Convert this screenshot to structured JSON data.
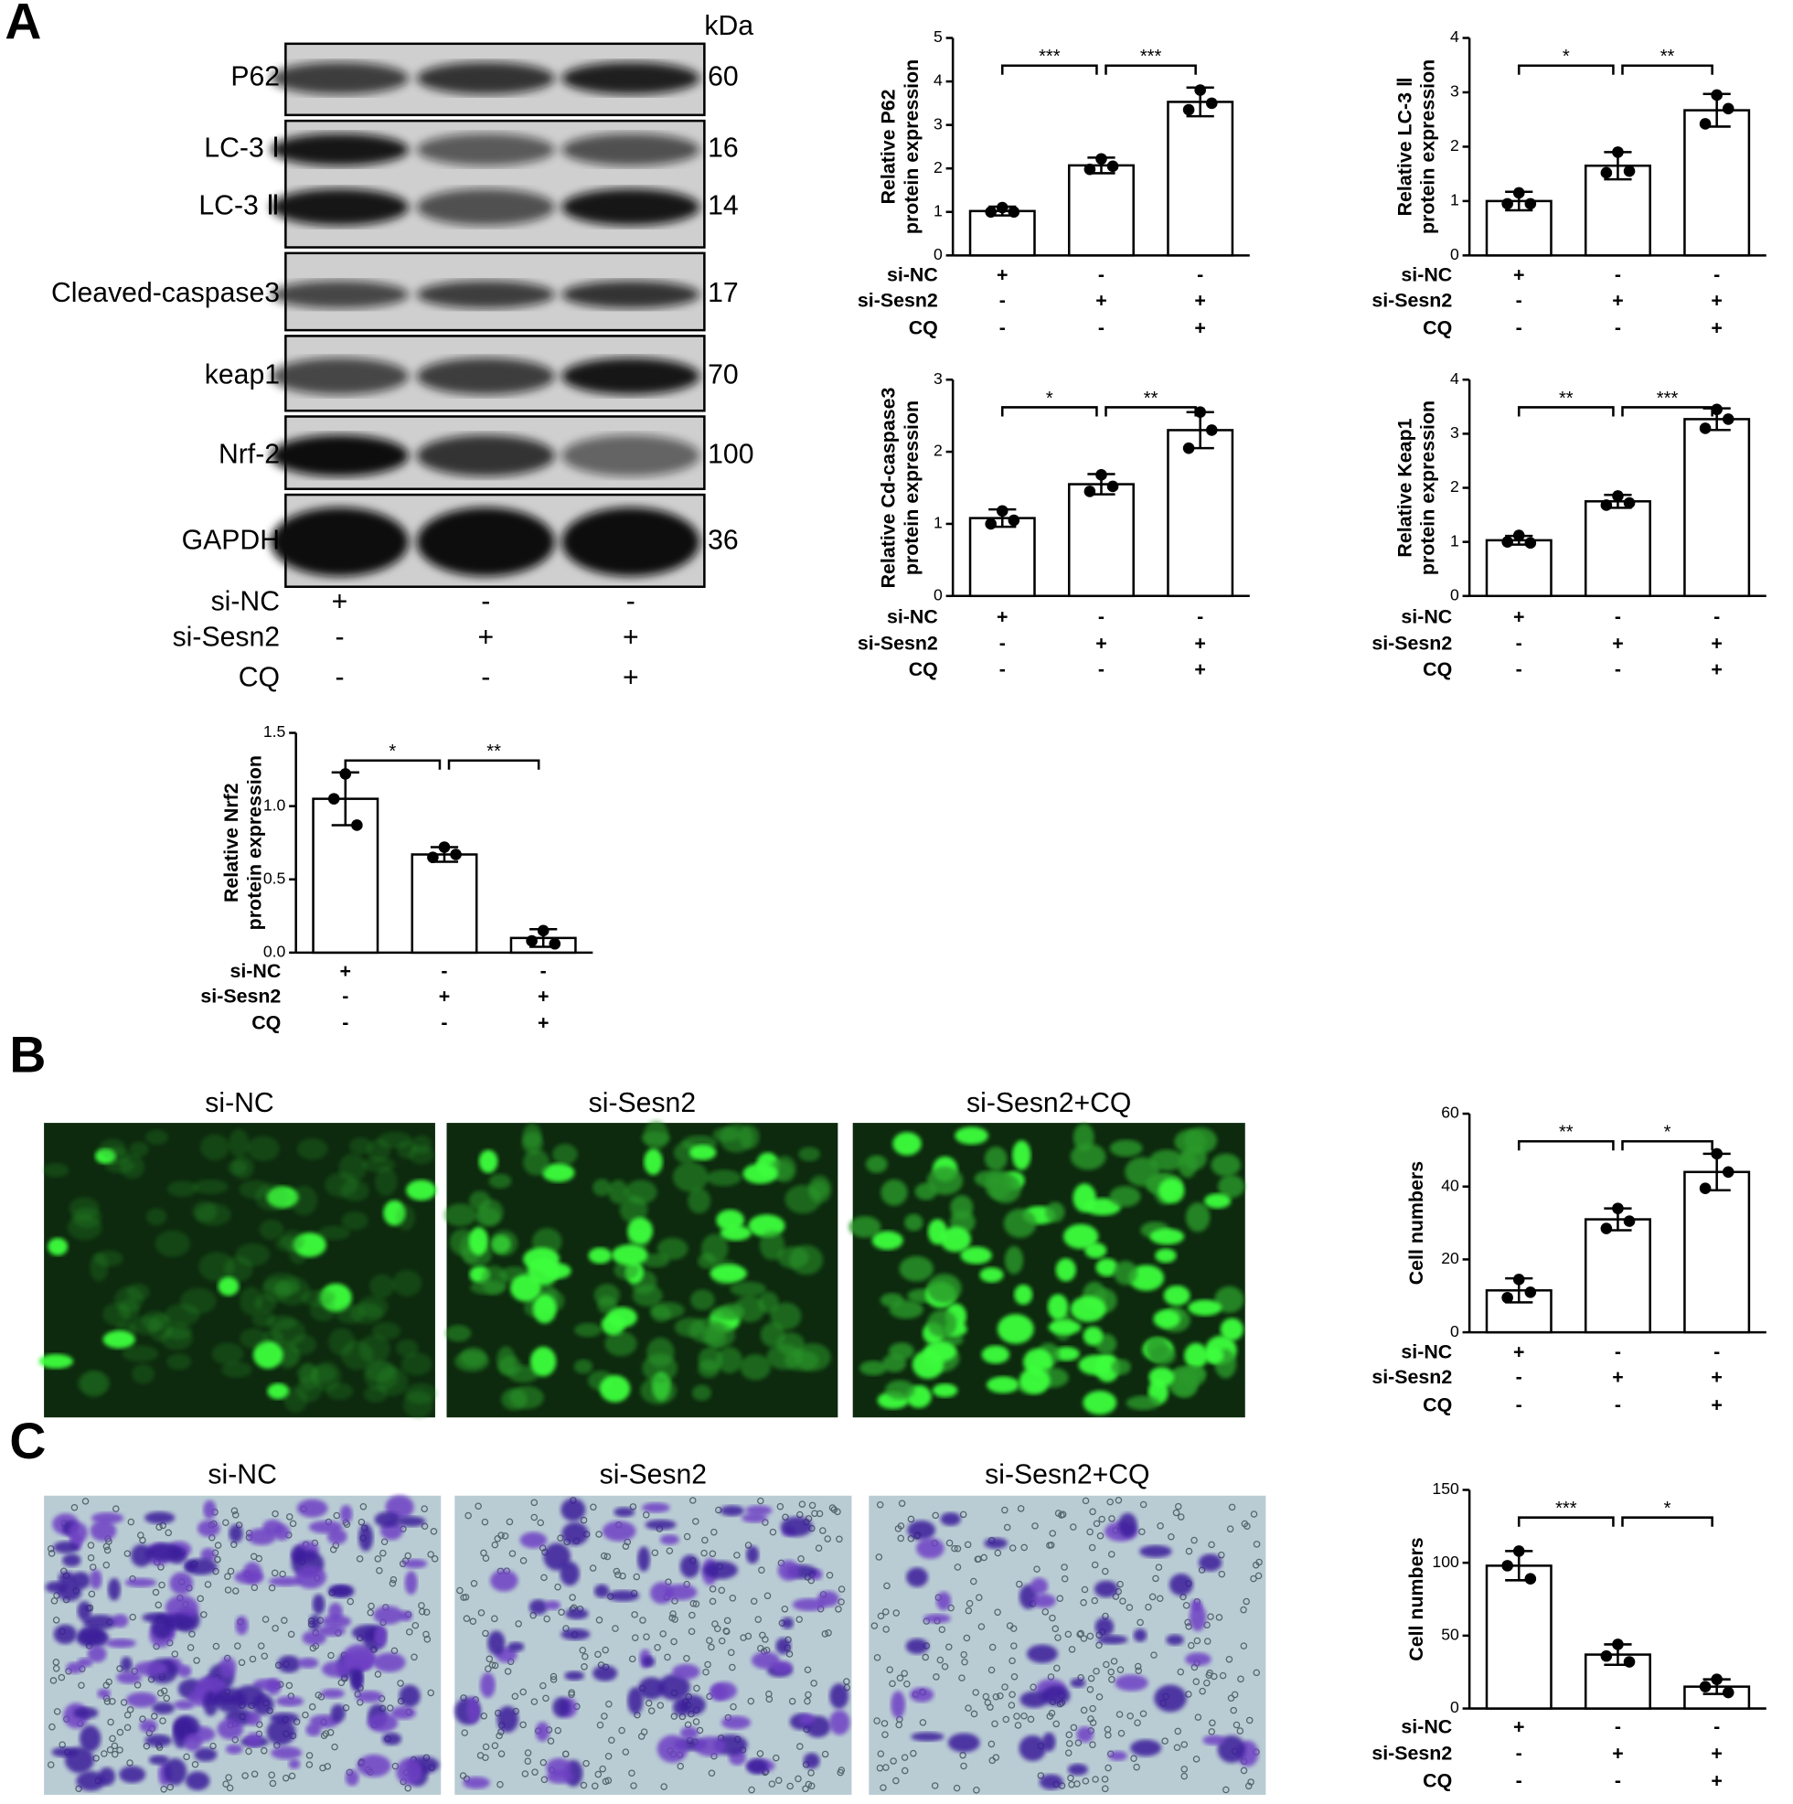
{
  "panel_labels": [
    "A",
    "B",
    "C"
  ],
  "blot": {
    "kda_header": "kDa",
    "rows": [
      {
        "label": "P62",
        "kda": 60
      },
      {
        "label": "LC-3 Ⅰ",
        "kda": 16
      },
      {
        "label": "LC-3 Ⅱ",
        "kda": 14
      },
      {
        "label": "Cleaved-caspase3",
        "kda": 17
      },
      {
        "label": "keap1",
        "kda": 70
      },
      {
        "label": "Nrf-2",
        "kda": 100
      },
      {
        "label": "GAPDH",
        "kda": 36
      }
    ],
    "conditions": [
      {
        "name": "si-NC",
        "signs": [
          "+",
          "-",
          "-"
        ]
      },
      {
        "name": "si-Sesn2",
        "signs": [
          "-",
          "+",
          "+"
        ]
      },
      {
        "name": "CQ",
        "signs": [
          "-",
          "-",
          "+"
        ]
      }
    ]
  },
  "images_b": {
    "titles": [
      "si-NC",
      "si-Sesn2",
      "si-Sesn2+CQ"
    ]
  },
  "images_c": {
    "titles": [
      "si-NC",
      "si-Sesn2",
      "si-Sesn2+CQ"
    ]
  },
  "chart_data": [
    {
      "type": "bar",
      "ylabel": [
        "Relative P62",
        "protein expression"
      ],
      "ylim": [
        0,
        5
      ],
      "yticks": [
        0,
        1,
        2,
        3,
        4,
        5
      ],
      "values": [
        1.02,
        2.07,
        3.53
      ],
      "errors": [
        0.1,
        0.18,
        0.33
      ],
      "points": [
        [
          1.1,
          1.0,
          1.0
        ],
        [
          2.22,
          1.98,
          2.05
        ],
        [
          3.8,
          3.35,
          3.5
        ]
      ],
      "significance": [
        "***",
        "***"
      ],
      "conditions": [
        {
          "name": "si-NC",
          "signs": [
            "+",
            "-",
            "-"
          ]
        },
        {
          "name": "si-Sesn2",
          "signs": [
            "-",
            "+",
            "+"
          ]
        },
        {
          "name": "CQ",
          "signs": [
            "-",
            "-",
            "+"
          ]
        }
      ]
    },
    {
      "type": "bar",
      "ylabel": [
        "Relative LC-3 Ⅱ",
        "protein expression"
      ],
      "ylim": [
        0,
        4
      ],
      "yticks": [
        0,
        1,
        2,
        3,
        4
      ],
      "values": [
        1.0,
        1.65,
        2.67
      ],
      "errors": [
        0.17,
        0.25,
        0.3
      ],
      "points": [
        [
          1.15,
          0.95,
          0.95
        ],
        [
          1.9,
          1.52,
          1.55
        ],
        [
          2.95,
          2.42,
          2.7
        ]
      ],
      "significance": [
        "*",
        "**"
      ],
      "conditions": [
        {
          "name": "si-NC",
          "signs": [
            "+",
            "-",
            "-"
          ]
        },
        {
          "name": "si-Sesn2",
          "signs": [
            "-",
            "+",
            "+"
          ]
        },
        {
          "name": "CQ",
          "signs": [
            "-",
            "-",
            "+"
          ]
        }
      ]
    },
    {
      "type": "bar",
      "ylabel": [
        "Relative Cd-caspase3",
        "protein expression"
      ],
      "ylim": [
        0,
        3
      ],
      "yticks": [
        0,
        1,
        2,
        3
      ],
      "values": [
        1.08,
        1.55,
        2.3
      ],
      "errors": [
        0.12,
        0.14,
        0.25
      ],
      "points": [
        [
          1.18,
          1.0,
          1.05
        ],
        [
          1.68,
          1.45,
          1.52
        ],
        [
          2.55,
          2.05,
          2.3
        ]
      ],
      "significance": [
        "*",
        "**"
      ],
      "conditions": [
        {
          "name": "si-NC",
          "signs": [
            "+",
            "-",
            "-"
          ]
        },
        {
          "name": "si-Sesn2",
          "signs": [
            "-",
            "+",
            "+"
          ]
        },
        {
          "name": "CQ",
          "signs": [
            "-",
            "-",
            "+"
          ]
        }
      ]
    },
    {
      "type": "bar",
      "ylabel": [
        "Relative Keap1",
        "protein expression"
      ],
      "ylim": [
        0,
        4
      ],
      "yticks": [
        0,
        1,
        2,
        3,
        4
      ],
      "values": [
        1.03,
        1.75,
        3.27
      ],
      "errors": [
        0.08,
        0.12,
        0.2
      ],
      "points": [
        [
          1.12,
          1.0,
          0.98
        ],
        [
          1.85,
          1.68,
          1.72
        ],
        [
          3.45,
          3.1,
          3.27
        ]
      ],
      "significance": [
        "**",
        "***"
      ],
      "conditions": [
        {
          "name": "si-NC",
          "signs": [
            "+",
            "-",
            "-"
          ]
        },
        {
          "name": "si-Sesn2",
          "signs": [
            "-",
            "+",
            "+"
          ]
        },
        {
          "name": "CQ",
          "signs": [
            "-",
            "-",
            "+"
          ]
        }
      ]
    },
    {
      "type": "bar",
      "ylabel": [
        "Relative Nrf2",
        "protein expression"
      ],
      "ylim": [
        0,
        1.5
      ],
      "yticks": [
        {
          "value": 0,
          "label": "0.0"
        },
        0.5,
        {
          "value": 1,
          "label": "1.0"
        },
        1.5
      ],
      "values": [
        1.05,
        0.67,
        0.1
      ],
      "errors": [
        0.18,
        0.05,
        0.06
      ],
      "points": [
        [
          1.22,
          1.05,
          0.87
        ],
        [
          0.72,
          0.65,
          0.67
        ],
        [
          0.15,
          0.08,
          0.06
        ]
      ],
      "significance": [
        "*",
        "**"
      ],
      "conditions": [
        {
          "name": "si-NC",
          "signs": [
            "+",
            "-",
            "-"
          ]
        },
        {
          "name": "si-Sesn2",
          "signs": [
            "-",
            "+",
            "+"
          ]
        },
        {
          "name": "CQ",
          "signs": [
            "-",
            "-",
            "+"
          ]
        }
      ]
    },
    {
      "type": "bar",
      "ylabel": [
        "Cell numbers"
      ],
      "ylim": [
        0,
        60
      ],
      "yticks": [
        0,
        20,
        40,
        60
      ],
      "values": [
        11.5,
        31,
        44
      ],
      "errors": [
        3.3,
        3,
        5
      ],
      "points": [
        [
          14.5,
          9.5,
          11
        ],
        [
          34,
          28.5,
          30.5
        ],
        [
          49,
          39.5,
          44
        ]
      ],
      "significance": [
        "**",
        "*"
      ],
      "conditions": [
        {
          "name": "si-NC",
          "signs": [
            "+",
            "-",
            "-"
          ]
        },
        {
          "name": "si-Sesn2",
          "signs": [
            "-",
            "+",
            "+"
          ]
        },
        {
          "name": "CQ",
          "signs": [
            "-",
            "-",
            "+"
          ]
        }
      ]
    },
    {
      "type": "bar",
      "ylabel": [
        "Cell numbers"
      ],
      "ylim": [
        0,
        150
      ],
      "yticks": [
        0,
        50,
        100,
        150
      ],
      "values": [
        98,
        37,
        15
      ],
      "errors": [
        10,
        7,
        5
      ],
      "points": [
        [
          108,
          98,
          89
        ],
        [
          44,
          36,
          32
        ],
        [
          20,
          15,
          11
        ]
      ],
      "significance": [
        "***",
        "*"
      ],
      "conditions": [
        {
          "name": "si-NC",
          "signs": [
            "+",
            "-",
            "-"
          ]
        },
        {
          "name": "si-Sesn2",
          "signs": [
            "-",
            "+",
            "+"
          ]
        },
        {
          "name": "CQ",
          "signs": [
            "-",
            "-",
            "+"
          ]
        }
      ]
    }
  ]
}
